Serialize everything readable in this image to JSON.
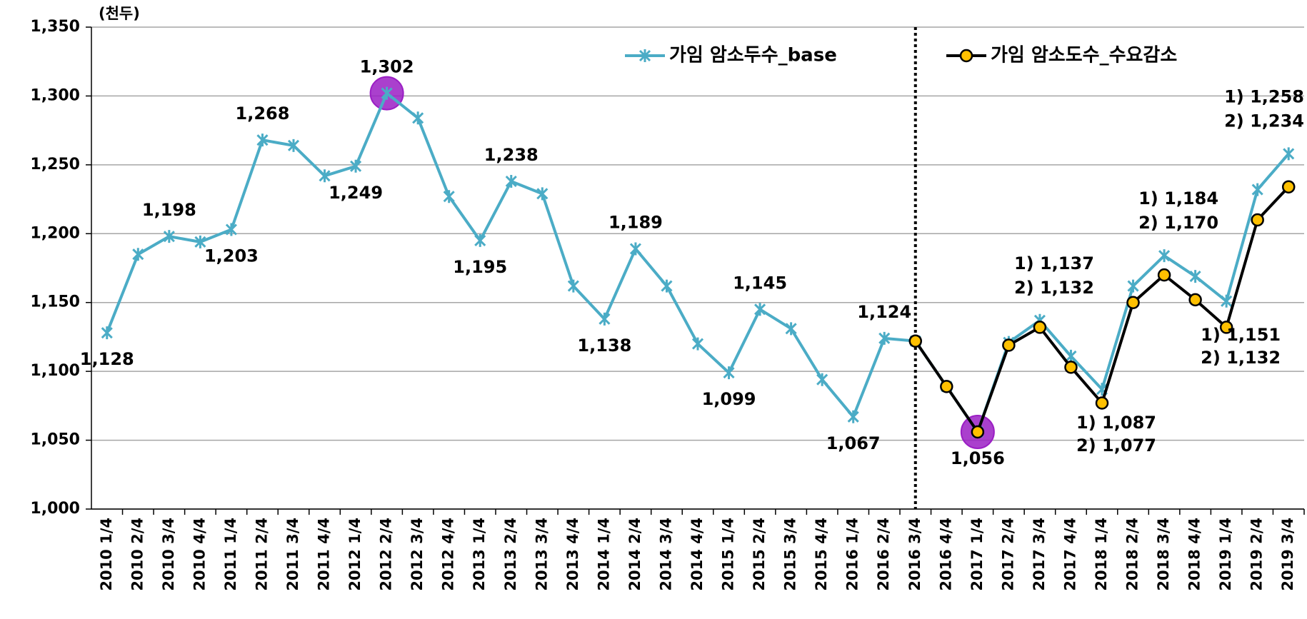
{
  "chart_data": {
    "type": "line",
    "y_label": "(천두)",
    "categories": [
      "2010 1/4",
      "2010 2/4",
      "2010 3/4",
      "2010 4/4",
      "2011 1/4",
      "2011 2/4",
      "2011 3/4",
      "2011 4/4",
      "2012 1/4",
      "2012 2/4",
      "2012 3/4",
      "2012 4/4",
      "2013 1/4",
      "2013 2/4",
      "2013 3/4",
      "2013 4/4",
      "2014 1/4",
      "2014 2/4",
      "2014 3/4",
      "2014 4/4",
      "2015 1/4",
      "2015 2/4",
      "2015 3/4",
      "2015 4/4",
      "2016 1/4",
      "2016 2/4",
      "2016 3/4",
      "2016 4/4",
      "2017 1/4",
      "2017 2/4",
      "2017 3/4",
      "2017 4/4",
      "2018 1/4",
      "2018 2/4",
      "2018 3/4",
      "2018 4/4",
      "2019 1/4",
      "2019 2/4",
      "2019 3/4"
    ],
    "series": [
      {
        "name": "가임 암소두수_base",
        "color": "#4bacc6",
        "marker": "asterisk",
        "values": [
          1128,
          1185,
          1198,
          1194,
          1203,
          1268,
          1264,
          1242,
          1249,
          1302,
          1284,
          1227,
          1195,
          1238,
          1229,
          1162,
          1138,
          1189,
          1162,
          1120,
          1099,
          1145,
          1131,
          1094,
          1067,
          1124,
          1122,
          1089,
          1056,
          1121,
          1137,
          1111,
          1087,
          1162,
          1184,
          1169,
          1151,
          1232,
          1258
        ],
        "value_labels": [
          "1,128",
          null,
          "1,198",
          null,
          "1,203",
          "1,268",
          null,
          null,
          "1,249",
          "1,302",
          null,
          null,
          "1,195",
          "1,238",
          null,
          null,
          "1,138",
          "1,189",
          null,
          null,
          "1,099",
          "1,145",
          null,
          null,
          "1,067",
          "1,124",
          null,
          null,
          "1,056",
          null,
          "1) 1,137",
          null,
          "1) 1,087",
          null,
          "1) 1,184",
          null,
          "1) 1,151",
          null,
          "1) 1,258"
        ]
      },
      {
        "name": "가임 암소도수_수요감소",
        "color": "#000000",
        "marker": "circle",
        "marker_color": "#ffc000",
        "values": [
          null,
          null,
          null,
          null,
          null,
          null,
          null,
          null,
          null,
          null,
          null,
          null,
          null,
          null,
          null,
          null,
          null,
          null,
          null,
          null,
          null,
          null,
          null,
          null,
          null,
          null,
          1122,
          1089,
          1056,
          1119,
          1132,
          1103,
          1077,
          1150,
          1170,
          1152,
          1132,
          1210,
          1234
        ],
        "value_labels": [
          null,
          null,
          null,
          null,
          null,
          null,
          null,
          null,
          null,
          null,
          null,
          null,
          null,
          null,
          null,
          null,
          null,
          null,
          null,
          null,
          null,
          null,
          null,
          null,
          null,
          null,
          null,
          null,
          null,
          null,
          "2) 1,132",
          null,
          "2) 1,077",
          null,
          "2) 1,170",
          null,
          "2) 1,132",
          null,
          "2) 1,234"
        ]
      }
    ],
    "ylim": [
      1000,
      1350
    ],
    "yticks": [
      {
        "value": 1000,
        "label": "1,000"
      },
      {
        "value": 1050,
        "label": "1,050"
      },
      {
        "value": 1100,
        "label": "1,100"
      },
      {
        "value": 1150,
        "label": "1,150"
      },
      {
        "value": 1200,
        "label": "1,200"
      },
      {
        "value": 1250,
        "label": "1,250"
      },
      {
        "value": 1300,
        "label": "1,300"
      },
      {
        "value": 1350,
        "label": "1,350"
      }
    ],
    "grid": true,
    "legend": "top",
    "divider_index": 26,
    "highlight": {
      "color": "#9b1fc4",
      "indices": [
        9,
        28
      ]
    }
  }
}
